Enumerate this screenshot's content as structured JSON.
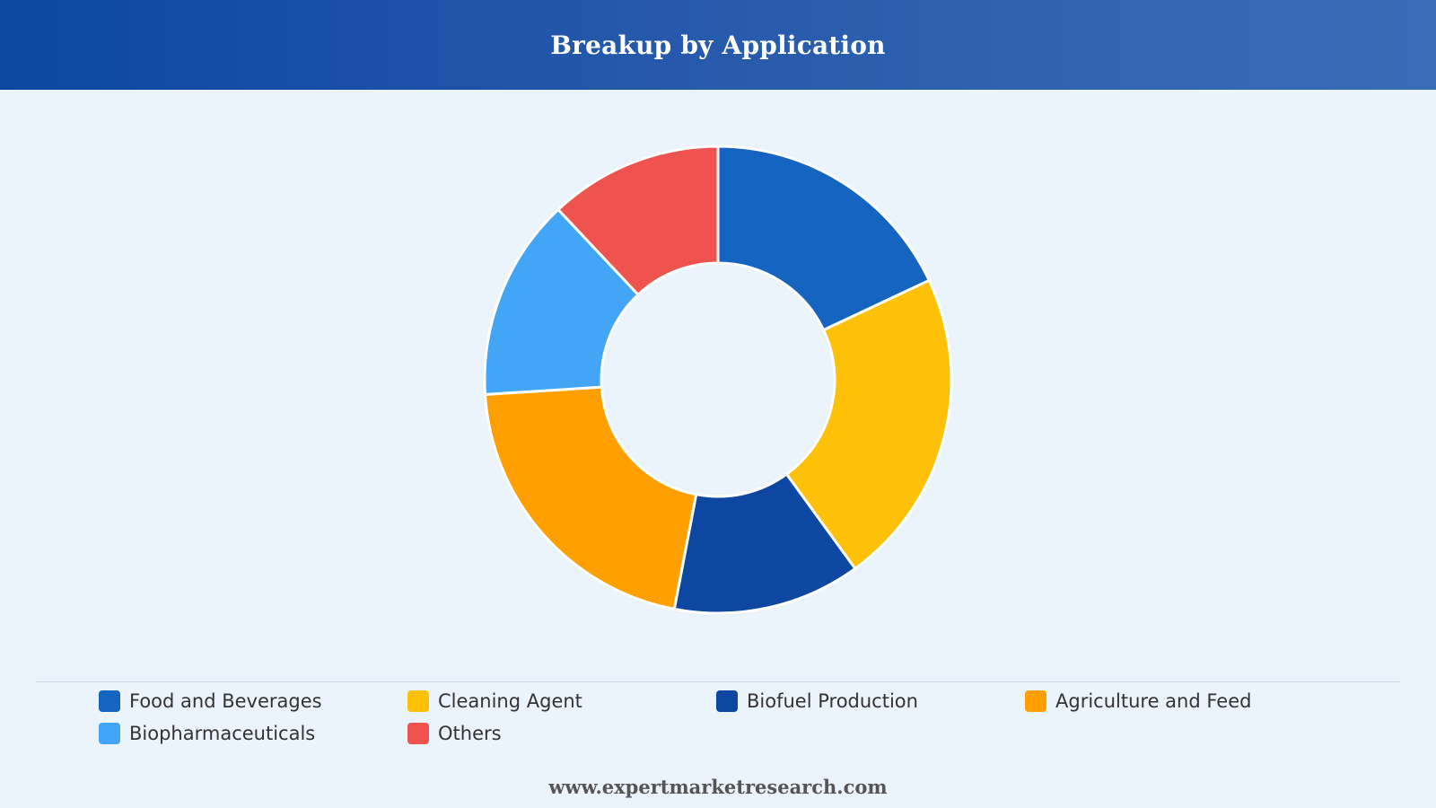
{
  "header": {
    "title": "Breakup by Application"
  },
  "colors": {
    "header_start": "#0d47a1",
    "header_end": "#3a6db8",
    "background": "#ebf3fc",
    "slice_border": "#ffffff"
  },
  "chart_data": {
    "type": "pie",
    "variant": "donut",
    "categories": [
      "Food and Beverages",
      "Cleaning Agent",
      "Biofuel Production",
      "Agriculture and Feed",
      "Biopharmaceuticals",
      "Others"
    ],
    "values": [
      18,
      22,
      13,
      21,
      14,
      12
    ],
    "colors": [
      "#1565c0",
      "#ffc107",
      "#0d47a1",
      "#ffa000",
      "#42a5f5",
      "#ef5350"
    ],
    "title": "Breakup by Application",
    "legend_position": "bottom",
    "start_angle": "top, clockwise"
  },
  "footer": {
    "text": "www.expertmarketresearch.com"
  }
}
